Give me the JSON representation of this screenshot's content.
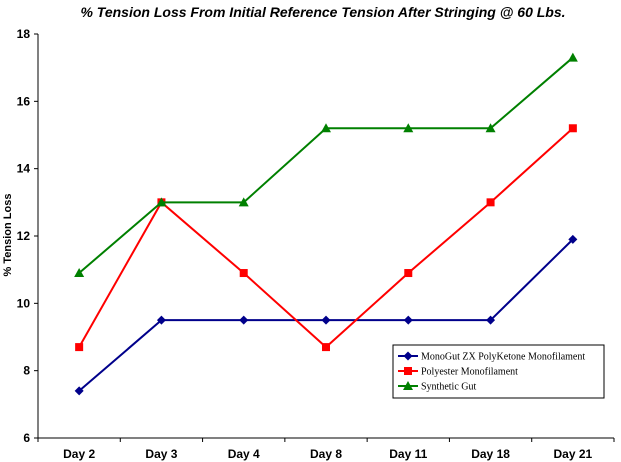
{
  "chart_data": {
    "type": "line",
    "title": "% Tension Loss From Initial Reference Tension After Stringing @ 60 Lbs.",
    "xlabel": "",
    "ylabel": "% Tension Loss",
    "categories": [
      "Day 2",
      "Day 3",
      "Day 4",
      "Day 8",
      "Day 11",
      "Day 18",
      "Day 21"
    ],
    "ylim": [
      6,
      18
    ],
    "yticks": [
      6,
      8,
      10,
      12,
      14,
      16,
      18
    ],
    "grid": false,
    "legend_position": "bottom-right",
    "series": [
      {
        "name": "MonoGut ZX PolyKetone Monofilament",
        "color": "#00008b",
        "marker": "diamond",
        "values": [
          7.4,
          9.5,
          9.5,
          9.5,
          9.5,
          9.5,
          11.9
        ]
      },
      {
        "name": "Polyester Monofilament",
        "color": "#ff0000",
        "marker": "square",
        "values": [
          8.7,
          13.0,
          10.9,
          8.7,
          10.9,
          13.0,
          15.2
        ]
      },
      {
        "name": "Synthetic Gut",
        "color": "#008000",
        "marker": "triangle",
        "values": [
          10.9,
          13.0,
          13.0,
          15.2,
          15.2,
          15.2,
          17.3
        ]
      }
    ]
  }
}
